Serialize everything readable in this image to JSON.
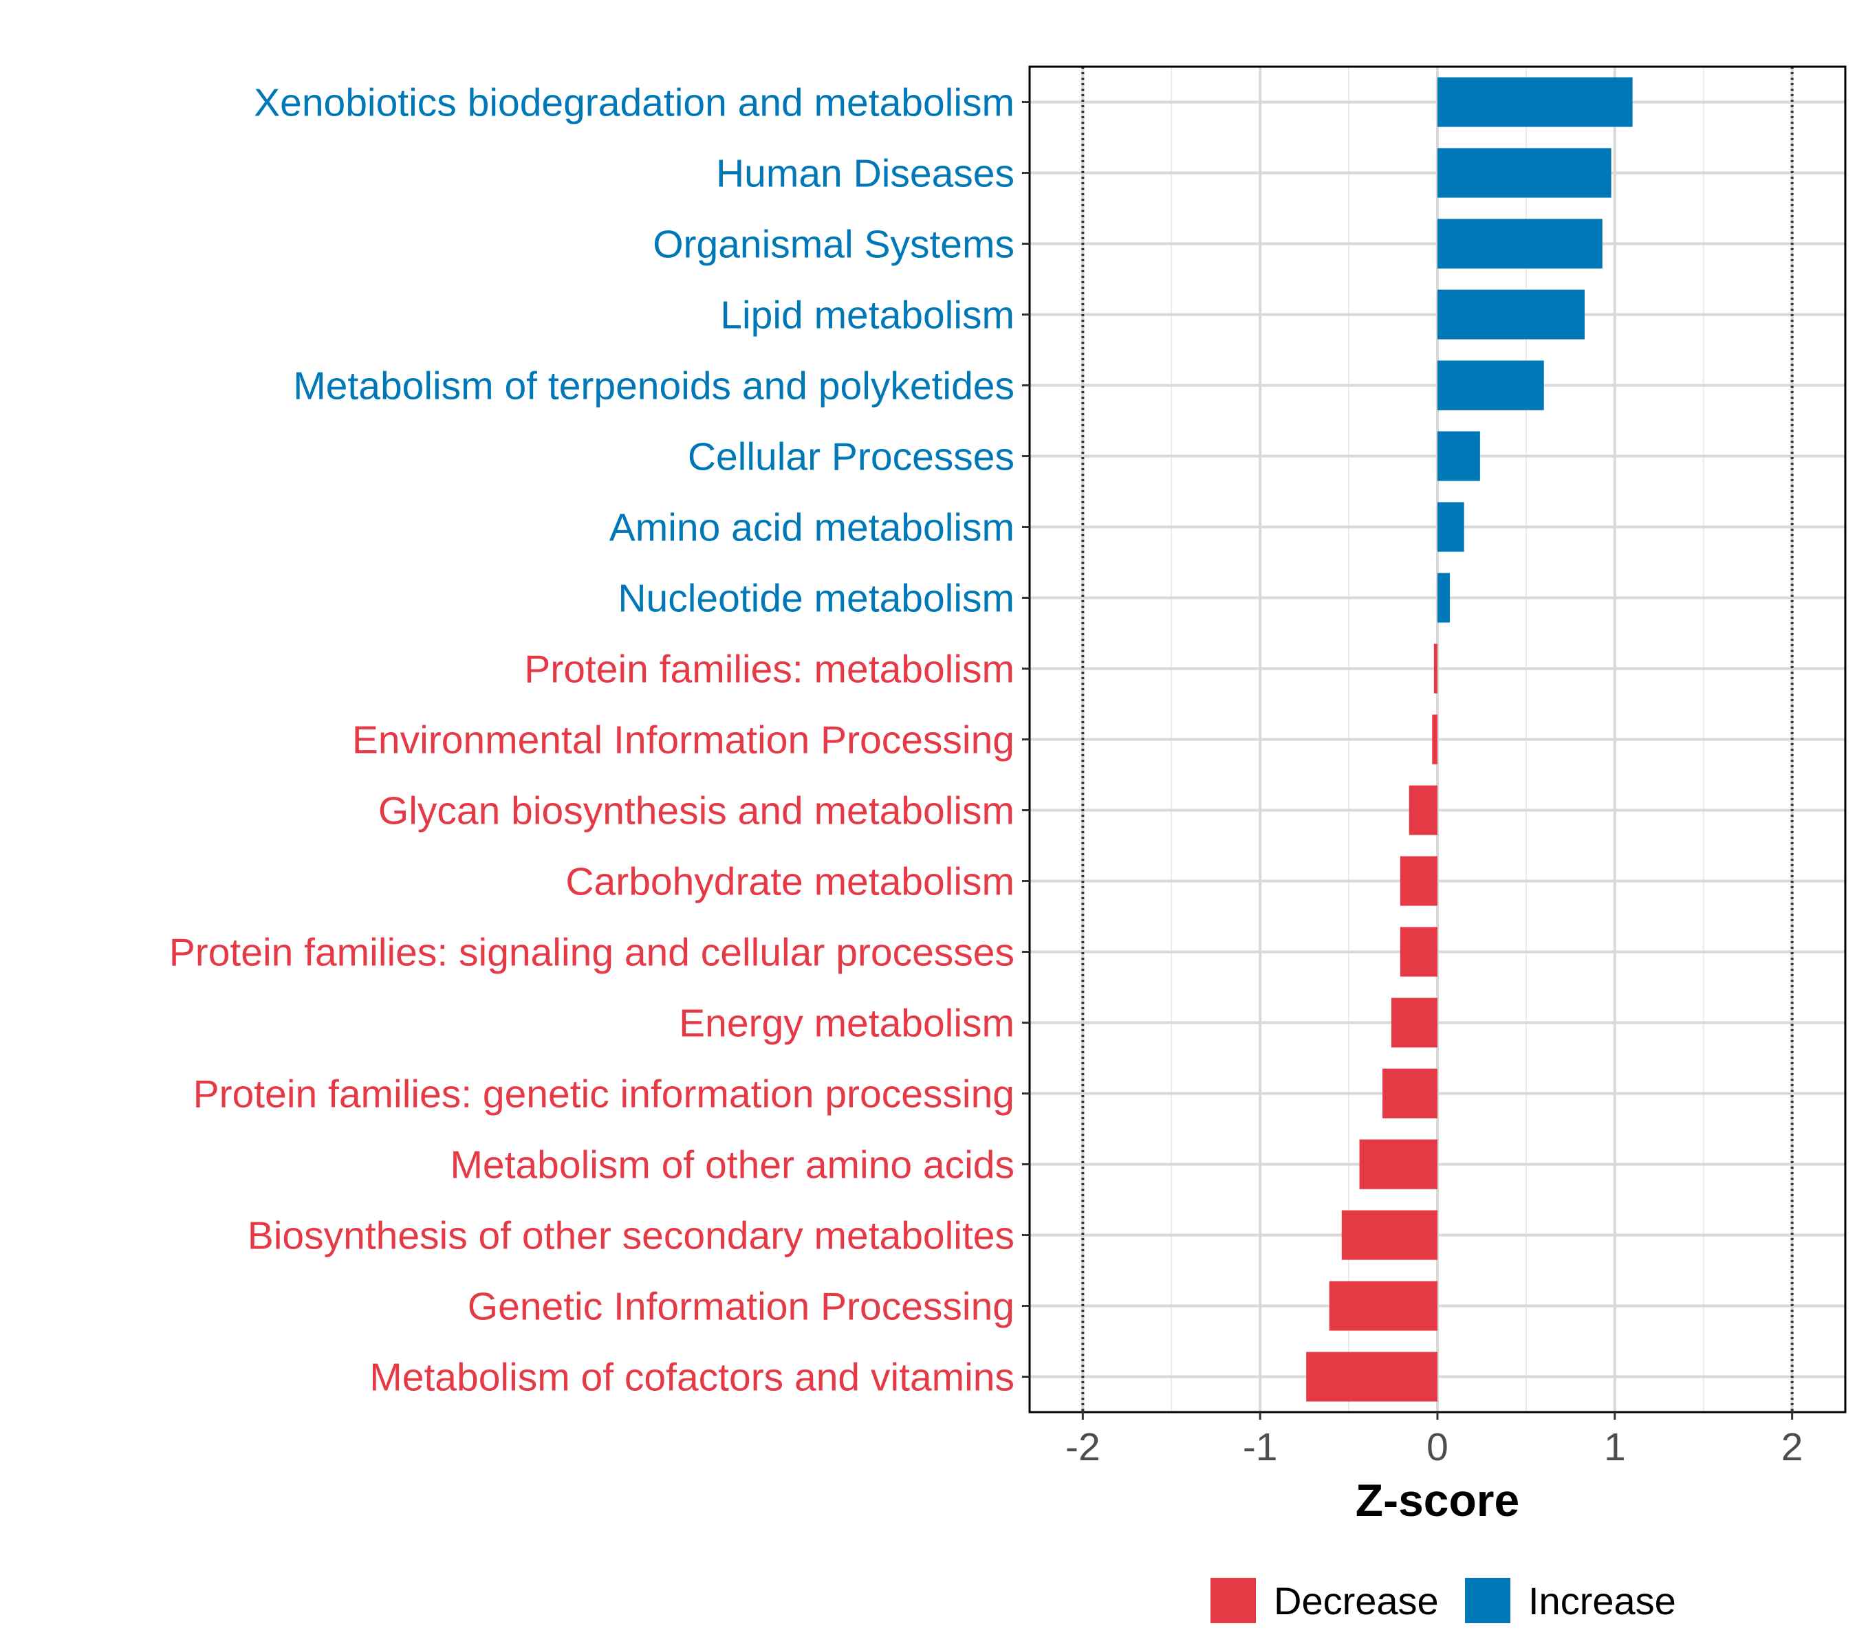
{
  "chart_data": {
    "type": "bar",
    "orientation": "horizontal",
    "xlabel": "Z-score",
    "ylabel": "",
    "xlim": [
      -2.3,
      2.3
    ],
    "xticks": [
      -2,
      -1,
      0,
      1,
      2
    ],
    "tick_labels": [
      "-2",
      "-1",
      "0",
      "1",
      "2"
    ],
    "reference_lines": [
      -2,
      2
    ],
    "grid": true,
    "legend_position": "bottom",
    "colors": {
      "Decrease": "#E63946",
      "Increase": "#0077B6"
    },
    "legend": [
      {
        "name": "Decrease",
        "color": "#E63946"
      },
      {
        "name": "Increase",
        "color": "#0077B6"
      }
    ],
    "bars": [
      {
        "category": "Xenobiotics biodegradation and metabolism",
        "value": 1.1,
        "group": "Increase"
      },
      {
        "category": "Human Diseases",
        "value": 0.98,
        "group": "Increase"
      },
      {
        "category": "Organismal Systems",
        "value": 0.93,
        "group": "Increase"
      },
      {
        "category": "Lipid metabolism",
        "value": 0.83,
        "group": "Increase"
      },
      {
        "category": "Metabolism of terpenoids and polyketides",
        "value": 0.6,
        "group": "Increase"
      },
      {
        "category": "Cellular Processes",
        "value": 0.24,
        "group": "Increase"
      },
      {
        "category": "Amino acid metabolism",
        "value": 0.15,
        "group": "Increase"
      },
      {
        "category": "Nucleotide metabolism",
        "value": 0.07,
        "group": "Increase"
      },
      {
        "category": "Protein families: metabolism",
        "value": -0.02,
        "group": "Decrease"
      },
      {
        "category": "Environmental Information Processing",
        "value": -0.03,
        "group": "Decrease"
      },
      {
        "category": "Glycan biosynthesis and metabolism",
        "value": -0.16,
        "group": "Decrease"
      },
      {
        "category": "Carbohydrate metabolism",
        "value": -0.21,
        "group": "Decrease"
      },
      {
        "category": "Protein families: signaling and cellular processes",
        "value": -0.21,
        "group": "Decrease"
      },
      {
        "category": "Energy metabolism",
        "value": -0.26,
        "group": "Decrease"
      },
      {
        "category": "Protein families: genetic information processing",
        "value": -0.31,
        "group": "Decrease"
      },
      {
        "category": "Metabolism of other amino acids",
        "value": -0.44,
        "group": "Decrease"
      },
      {
        "category": "Biosynthesis of other secondary metabolites",
        "value": -0.54,
        "group": "Decrease"
      },
      {
        "category": "Genetic Information Processing",
        "value": -0.61,
        "group": "Decrease"
      },
      {
        "category": "Metabolism of cofactors and vitamins",
        "value": -0.74,
        "group": "Decrease"
      }
    ]
  }
}
